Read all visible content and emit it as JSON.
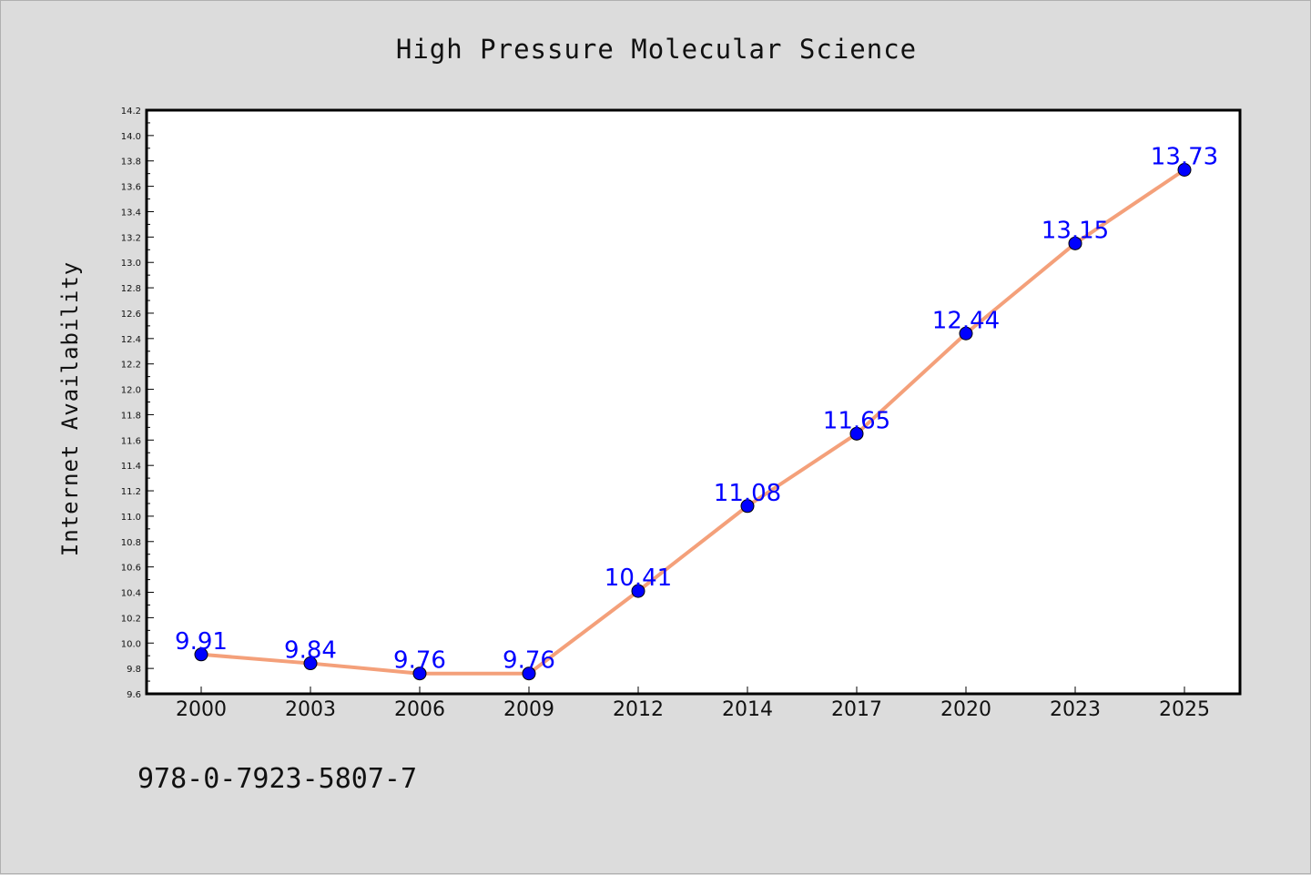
{
  "chart_data": {
    "type": "line",
    "title": "High Pressure Molecular Science",
    "xlabel": "",
    "ylabel": "Internet Availability",
    "categories": [
      "2000",
      "2003",
      "2006",
      "2009",
      "2012",
      "2014",
      "2017",
      "2020",
      "2023",
      "2025"
    ],
    "series": [
      {
        "values": [
          9.91,
          9.84,
          9.76,
          9.76,
          10.41,
          11.08,
          11.65,
          12.44,
          13.15,
          13.73
        ],
        "line_color": "#f4a07a",
        "marker_color": "#0000ff"
      }
    ],
    "data_labels": [
      "9.91",
      "9.84",
      "9.76",
      "9.76",
      "10.41",
      "11.08",
      "11.65",
      "12.44",
      "13.15",
      "13.73"
    ],
    "ylim": [
      9.6,
      14.2
    ],
    "yticks": [
      "9.6",
      "9.8",
      "10.0",
      "10.2",
      "10.4",
      "10.6",
      "10.8",
      "11.0",
      "11.2",
      "11.4",
      "11.6",
      "11.8",
      "12.0",
      "12.2",
      "12.4",
      "12.6",
      "12.8",
      "13.0",
      "13.2",
      "13.4",
      "13.6",
      "13.8",
      "14.0",
      "14.2"
    ],
    "grid": false,
    "legend": "none"
  },
  "footer": {
    "isbn": "978-0-7923-5807-7"
  },
  "colors": {
    "background": "#dcdcdc",
    "plot_background": "#ffffff",
    "line": "#f4a07a",
    "marker": "#0000ff",
    "data_label": "#0000ff"
  }
}
